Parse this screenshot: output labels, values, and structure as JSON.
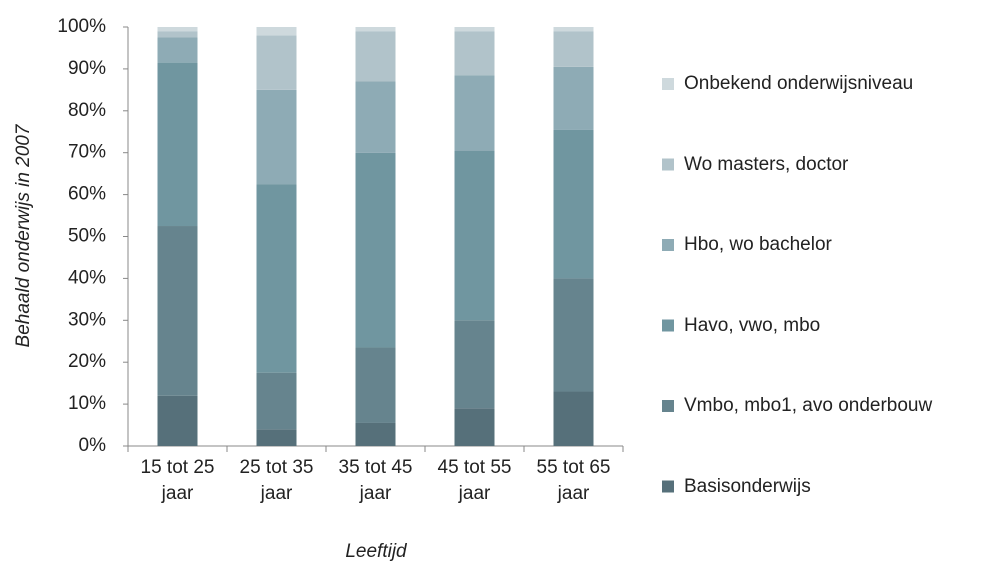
{
  "chart_data": {
    "type": "stacked_bar",
    "xlabel": "Leeftijd",
    "ylabel": "Behaald onderwijs in 2007",
    "categories": [
      "15 tot 25 jaar",
      "25 tot 35 jaar",
      "35 tot 45 jaar",
      "45 tot 55 jaar",
      "55 tot 65 jaar"
    ],
    "series": [
      {
        "name": "Basisonderwijs",
        "color": "#56707a",
        "values": [
          12,
          4,
          5.5,
          9,
          13
        ]
      },
      {
        "name": "Vmbo, mbo1, avo onderbouw",
        "color": "#66848e",
        "values": [
          40.5,
          13.5,
          18,
          21,
          27
        ]
      },
      {
        "name": "Havo, vwo, mbo",
        "color": "#7096a0",
        "values": [
          39,
          45,
          46.5,
          40.5,
          35.5
        ]
      },
      {
        "name": "Hbo, wo bachelor",
        "color": "#8eabb5",
        "values": [
          6,
          22.5,
          17,
          18,
          15
        ]
      },
      {
        "name": "Wo masters, doctor",
        "color": "#b1c3ca",
        "values": [
          1.5,
          13,
          12,
          10.5,
          8.5
        ]
      },
      {
        "name": "Onbekend onderwijsniveau",
        "color": "#ced9dd",
        "values": [
          1,
          2,
          1,
          1,
          1
        ]
      }
    ],
    "ylim": [
      0,
      100
    ],
    "yticks": [
      {
        "value": 0,
        "label": "0%"
      },
      {
        "value": 10,
        "label": "10%"
      },
      {
        "value": 20,
        "label": "20%"
      },
      {
        "value": 30,
        "label": "30%"
      },
      {
        "value": 40,
        "label": "40%"
      },
      {
        "value": 50,
        "label": "50%"
      },
      {
        "value": 60,
        "label": "60%"
      },
      {
        "value": 70,
        "label": "70%"
      },
      {
        "value": 80,
        "label": "80%"
      },
      {
        "value": 90,
        "label": "90%"
      },
      {
        "value": 100,
        "label": "100%"
      }
    ],
    "legend": "right"
  }
}
